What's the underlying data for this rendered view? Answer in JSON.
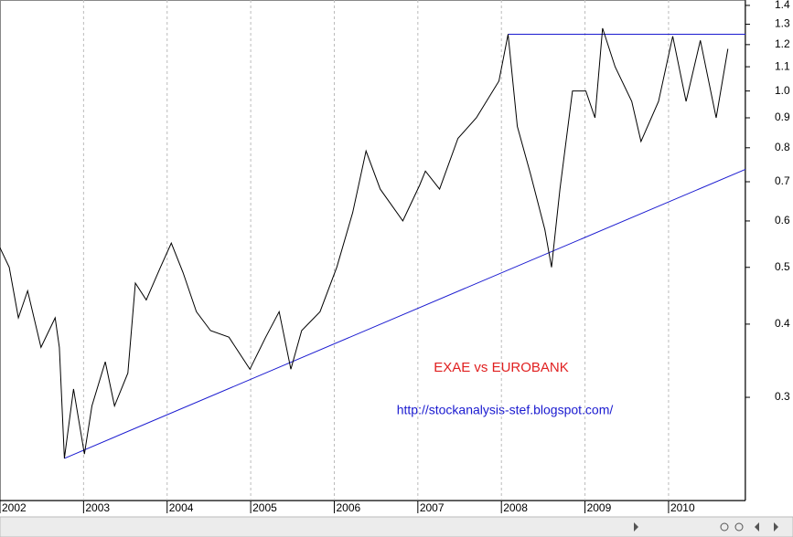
{
  "chart_data": {
    "type": "line",
    "annotations": [
      "EXAE vs EUROBANK",
      "http://stockanalysis-stef.blogspot.com/"
    ],
    "annotation_colors": [
      "#e02020",
      "#1a1ad0"
    ],
    "log_scale": true,
    "grid": true,
    "xlim": [
      2002,
      2010.92
    ],
    "xticks": [
      2002,
      2003,
      2004,
      2005,
      2006,
      2007,
      2008,
      2009,
      2010
    ],
    "ylim": [
      0.2,
      1.43
    ],
    "yticks": [
      0.3,
      0.4,
      0.5,
      0.6,
      0.7,
      0.8,
      0.9,
      {
        "value": 1,
        "label": "1.0"
      },
      1.1,
      1.2,
      1.3,
      1.4
    ],
    "series": [
      {
        "color": "#000000",
        "x": [
          2002.0,
          2002.11,
          2002.22,
          2002.33,
          2002.49,
          2002.66,
          2002.71,
          2002.77,
          2002.88,
          2003.01,
          2003.1,
          2003.26,
          2003.37,
          2003.53,
          2003.62,
          2003.75,
          2003.92,
          2004.05,
          2004.19,
          2004.35,
          2004.52,
          2004.74,
          2004.99,
          2005.18,
          2005.34,
          2005.48,
          2005.61,
          2005.83,
          2006.03,
          2006.22,
          2006.38,
          2006.55,
          2006.82,
          2007.02,
          2007.09,
          2007.26,
          2007.48,
          2007.7,
          2007.97,
          2008.08,
          2008.19,
          2008.35,
          2008.52,
          2008.6,
          2008.7,
          2008.85,
          2009.01,
          2009.12,
          2009.21,
          2009.36,
          2009.56,
          2009.67,
          2009.88,
          2010.05,
          2010.21,
          2010.38,
          2010.57,
          2010.71
        ],
        "values": [
          0.54,
          0.5,
          0.41,
          0.456,
          0.365,
          0.41,
          0.365,
          0.236,
          0.31,
          0.24,
          0.29,
          0.345,
          0.29,
          0.33,
          0.47,
          0.44,
          0.5,
          0.55,
          0.49,
          0.42,
          0.39,
          0.38,
          0.335,
          0.38,
          0.42,
          0.335,
          0.39,
          0.42,
          0.5,
          0.62,
          0.79,
          0.68,
          0.6,
          0.69,
          0.73,
          0.68,
          0.83,
          0.9,
          1.04,
          1.25,
          0.87,
          0.72,
          0.58,
          0.5,
          0.68,
          1.0,
          1.0,
          0.9,
          1.28,
          1.1,
          0.96,
          0.82,
          0.96,
          1.24,
          0.96,
          1.22,
          0.9,
          1.18
        ]
      }
    ],
    "trendlines": [
      {
        "color": "#1a1ad0",
        "x": [
          2002.77,
          2010.92
        ],
        "values": [
          0.236,
          0.735
        ]
      },
      {
        "color": "#1a1ad0",
        "x": [
          2008.08,
          2010.92
        ],
        "values": [
          1.25,
          1.25
        ]
      }
    ]
  }
}
